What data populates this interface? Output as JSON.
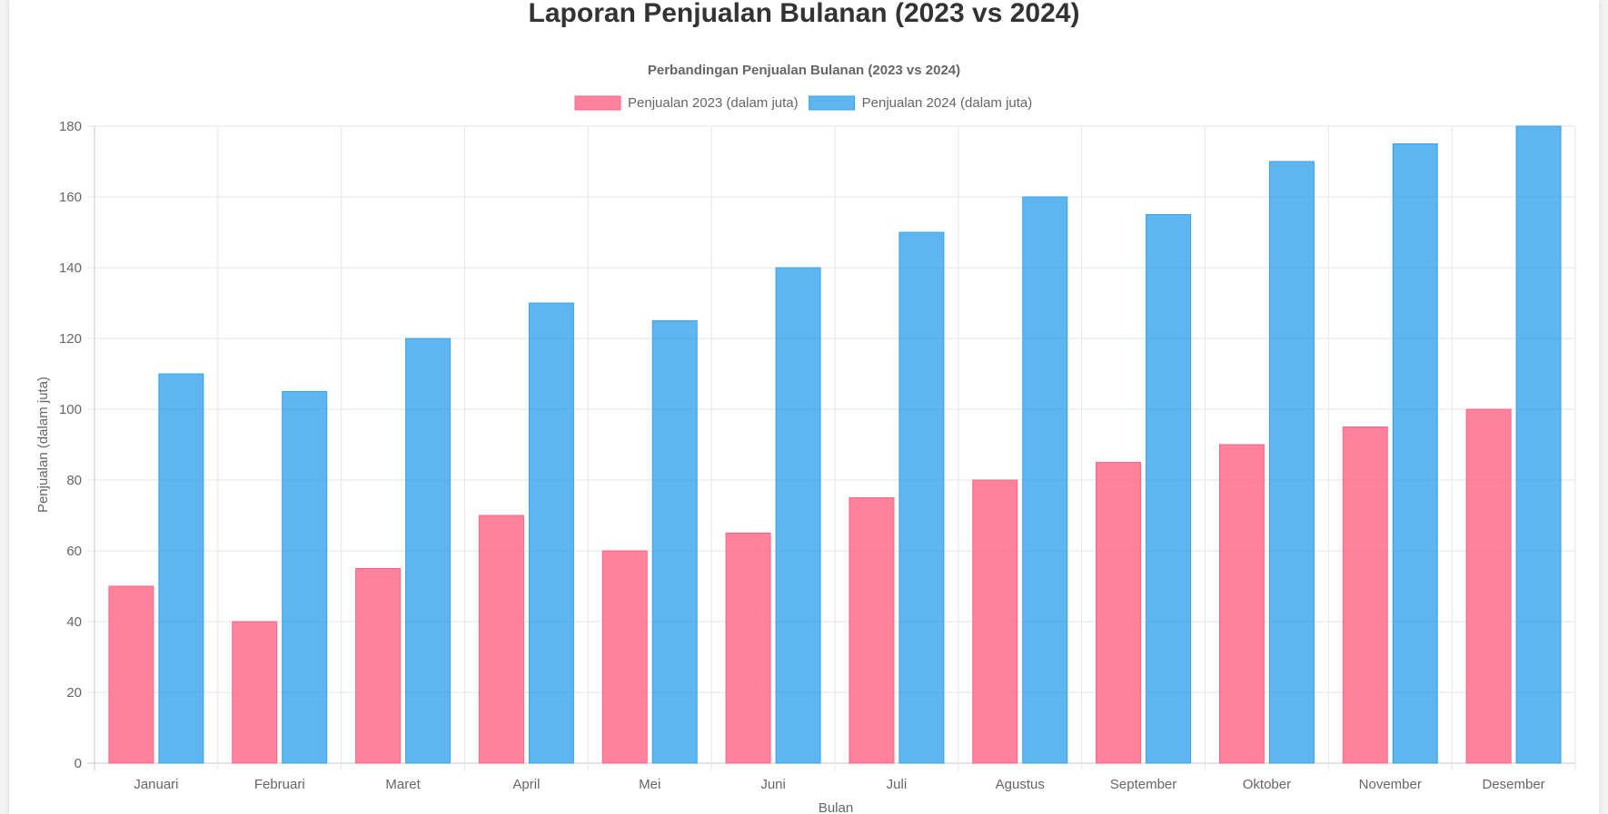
{
  "page": {
    "title": "Laporan Penjualan Bulanan (2023 vs 2024)"
  },
  "chart_data": {
    "type": "bar",
    "title": "Perbandingan Penjualan Bulanan (2023 vs 2024)",
    "xlabel": "Bulan",
    "ylabel": "Penjualan (dalam juta)",
    "ylim": [
      0,
      180
    ],
    "yticks": [
      0,
      20,
      40,
      60,
      80,
      100,
      120,
      140,
      160,
      180
    ],
    "grid": true,
    "legend_position": "top-center",
    "categories": [
      "Januari",
      "Februari",
      "Maret",
      "April",
      "Mei",
      "Juni",
      "Juli",
      "Agustus",
      "September",
      "Oktober",
      "November",
      "Desember"
    ],
    "series": [
      {
        "name": "Penjualan 2023 (dalam juta)",
        "color": "#ff6384",
        "values": [
          50,
          40,
          55,
          70,
          60,
          65,
          75,
          80,
          85,
          90,
          95,
          100
        ]
      },
      {
        "name": "Penjualan 2024 (dalam juta)",
        "color": "#36a2eb",
        "values": [
          110,
          105,
          120,
          130,
          125,
          140,
          150,
          160,
          155,
          170,
          175,
          180
        ]
      }
    ]
  }
}
